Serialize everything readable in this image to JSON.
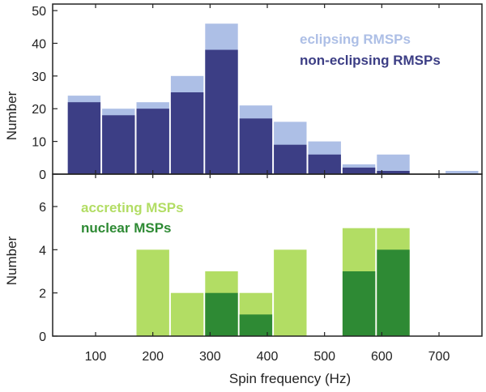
{
  "chart_data": [
    {
      "type": "bar",
      "panel": "top",
      "ylabel": "Number",
      "ylim": [
        0,
        52
      ],
      "yticks": [
        0,
        10,
        20,
        30,
        40,
        50
      ],
      "xlim": [
        25,
        775
      ],
      "bin_width": 60,
      "bin_starts": [
        50,
        110,
        170,
        230,
        290,
        350,
        410,
        470,
        530,
        590,
        650,
        710
      ],
      "series": [
        {
          "name": "eclipsing RMSPs",
          "color": "#adbfe6",
          "values": [
            24,
            20,
            22,
            30,
            46,
            21,
            16,
            10,
            3,
            6,
            0,
            1
          ]
        },
        {
          "name": "non-eclipsing RMSPs",
          "color": "#3c3e85",
          "values": [
            22,
            18,
            20,
            25,
            38,
            17,
            9,
            6,
            2,
            1,
            0,
            0
          ]
        }
      ]
    },
    {
      "type": "bar",
      "panel": "bottom",
      "xlabel": "Spin frequency (Hz)",
      "ylabel": "Number",
      "ylim": [
        0,
        7.5
      ],
      "yticks": [
        0,
        2,
        4,
        6
      ],
      "xlim": [
        25,
        775
      ],
      "xticks": [
        100,
        200,
        300,
        400,
        500,
        600,
        700
      ],
      "bin_width": 60,
      "bin_starts": [
        50,
        110,
        170,
        230,
        290,
        350,
        410,
        470,
        530,
        590,
        650,
        710
      ],
      "series": [
        {
          "name": "accreting MSPs",
          "color": "#b2dd64",
          "values": [
            0,
            0,
            4,
            2,
            3,
            2,
            4,
            0,
            5,
            5,
            0,
            0
          ]
        },
        {
          "name": "nuclear MSPs",
          "color": "#2e8a34",
          "values": [
            0,
            0,
            0,
            0,
            2,
            1,
            0,
            0,
            3,
            4,
            0,
            0
          ]
        }
      ]
    }
  ]
}
